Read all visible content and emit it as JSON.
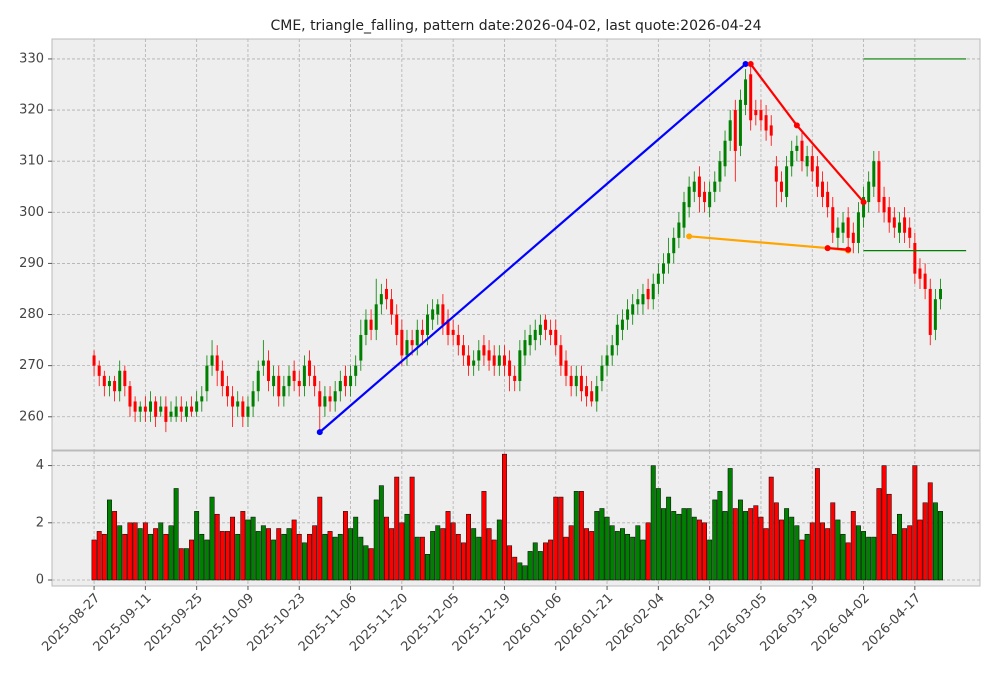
{
  "chart_data": [
    {
      "type": "candlestick",
      "title": "CME, triangle_falling, pattern date:2026-04-02, last quote:2026-04-24",
      "categories": [
        "2025-08-27",
        null,
        null,
        null,
        null,
        null,
        null,
        null,
        null,
        null,
        "2025-09-11",
        null,
        null,
        null,
        null,
        null,
        null,
        null,
        null,
        null,
        "2025-09-25",
        null,
        null,
        null,
        null,
        null,
        null,
        null,
        null,
        null,
        "2025-10-09",
        null,
        null,
        null,
        null,
        null,
        null,
        null,
        null,
        null,
        "2025-10-23",
        null,
        null,
        null,
        null,
        null,
        null,
        null,
        null,
        null,
        "2025-11-06",
        null,
        null,
        null,
        null,
        null,
        null,
        null,
        null,
        null,
        "2025-11-20",
        null,
        null,
        null,
        null,
        null,
        null,
        null,
        null,
        null,
        "2025-12-05",
        null,
        null,
        null,
        null,
        null,
        null,
        null,
        null,
        null,
        "2025-12-19",
        null,
        null,
        null,
        null,
        null,
        null,
        null,
        null,
        null,
        "2026-01-06",
        null,
        null,
        null,
        null,
        null,
        null,
        null,
        null,
        null,
        "2026-01-21",
        null,
        null,
        null,
        null,
        null,
        null,
        null,
        null,
        null,
        "2026-02-04",
        null,
        null,
        null,
        null,
        null,
        null,
        null,
        null,
        null,
        "2026-02-19",
        null,
        null,
        null,
        null,
        null,
        null,
        null,
        null,
        null,
        "2026-03-05",
        null,
        null,
        null,
        null,
        null,
        null,
        null,
        null,
        null,
        "2026-03-19",
        null,
        null,
        null,
        null,
        null,
        null,
        null,
        null,
        null,
        "2026-04-02",
        null,
        null,
        null,
        null,
        null,
        null,
        null,
        null,
        null,
        "2026-04-17",
        null,
        null,
        null,
        null,
        null
      ],
      "open": [
        272,
        270,
        268,
        266,
        267,
        265,
        269,
        266,
        263,
        261,
        262,
        261,
        263,
        261,
        262,
        260,
        260,
        262,
        260,
        262,
        261,
        263,
        265,
        270,
        272,
        269,
        266,
        264,
        262,
        263,
        260,
        262,
        265,
        270,
        271,
        266,
        268,
        264,
        266,
        269,
        267,
        266,
        271,
        268,
        265,
        262,
        264,
        263,
        265,
        268,
        266,
        268,
        271,
        276,
        279,
        277,
        282,
        285,
        283,
        280,
        277,
        272,
        275,
        274,
        277,
        276,
        279,
        280,
        282,
        279,
        277,
        276,
        274,
        272,
        270,
        271,
        274,
        273,
        272,
        270,
        272,
        271,
        268,
        267,
        272,
        274,
        275,
        276,
        279,
        277,
        277,
        274,
        271,
        268,
        266,
        268,
        266,
        265,
        263,
        267,
        270,
        272,
        274,
        277,
        279,
        280,
        282,
        282,
        285,
        283,
        286,
        288,
        290,
        292,
        295,
        297,
        301,
        304,
        307,
        304,
        301,
        304,
        306,
        309,
        314,
        320,
        313,
        321,
        327,
        320,
        320,
        319,
        317,
        309,
        306,
        303,
        309,
        312,
        314,
        309,
        311,
        309,
        306,
        304,
        301,
        295,
        296,
        299,
        296,
        294,
        299,
        302,
        305,
        310,
        303,
        301,
        299,
        296,
        299,
        297,
        294,
        289,
        288,
        285,
        277,
        283
      ],
      "high": [
        273,
        271,
        269,
        268,
        268,
        271,
        270,
        267,
        264,
        263,
        264,
        265,
        264,
        264,
        264,
        263,
        264,
        264,
        263,
        264,
        265,
        266,
        272,
        275,
        274,
        271,
        268,
        266,
        265,
        264,
        264,
        267,
        271,
        275,
        273,
        270,
        270,
        268,
        270,
        271,
        269,
        272,
        273,
        270,
        267,
        266,
        266,
        267,
        269,
        270,
        270,
        272,
        279,
        281,
        281,
        287,
        286,
        287,
        285,
        282,
        279,
        277,
        277,
        279,
        279,
        282,
        283,
        283,
        284,
        281,
        279,
        278,
        276,
        274,
        273,
        275,
        276,
        275,
        274,
        274,
        274,
        273,
        270,
        275,
        277,
        278,
        279,
        280,
        280,
        279,
        279,
        276,
        273,
        270,
        270,
        270,
        268,
        267,
        268,
        272,
        274,
        276,
        280,
        281,
        283,
        284,
        285,
        286,
        287,
        288,
        290,
        292,
        295,
        297,
        300,
        304,
        307,
        308,
        309,
        306,
        306,
        308,
        312,
        316,
        320,
        322,
        324,
        328,
        329,
        322,
        322,
        321,
        319,
        311,
        308,
        311,
        314,
        315,
        316,
        313,
        313,
        311,
        308,
        306,
        303,
        299,
        300,
        301,
        298,
        302,
        305,
        308,
        312,
        312,
        305,
        303,
        301,
        300,
        301,
        299,
        296,
        291,
        290,
        287,
        285,
        287
      ],
      "low": [
        268,
        266,
        264,
        264,
        263,
        263,
        264,
        260,
        259,
        259,
        259,
        259,
        258,
        260,
        257,
        259,
        259,
        259,
        259,
        260,
        260,
        261,
        263,
        268,
        266,
        264,
        262,
        258,
        260,
        258,
        258,
        260,
        263,
        268,
        265,
        264,
        262,
        262,
        264,
        265,
        264,
        264,
        266,
        264,
        257,
        260,
        261,
        261,
        263,
        264,
        264,
        266,
        269,
        274,
        275,
        275,
        280,
        281,
        278,
        274,
        270,
        270,
        272,
        272,
        274,
        274,
        277,
        278,
        276,
        274,
        274,
        272,
        270,
        268,
        268,
        269,
        270,
        269,
        268,
        268,
        268,
        265,
        265,
        265,
        270,
        272,
        273,
        274,
        275,
        274,
        272,
        268,
        266,
        264,
        264,
        263,
        262,
        262,
        261,
        265,
        268,
        270,
        272,
        275,
        277,
        278,
        280,
        280,
        281,
        281,
        284,
        286,
        288,
        290,
        293,
        295,
        299,
        302,
        300,
        300,
        299,
        302,
        304,
        307,
        312,
        306,
        311,
        319,
        316,
        317,
        316,
        314,
        313,
        301,
        302,
        301,
        307,
        310,
        308,
        307,
        306,
        303,
        301,
        299,
        294,
        293,
        294,
        293,
        292,
        292,
        297,
        300,
        303,
        300,
        298,
        296,
        295,
        294,
        294,
        293,
        286,
        285,
        283,
        274,
        275,
        281
      ],
      "close": [
        270,
        268,
        266,
        267,
        265,
        269,
        266,
        262,
        261,
        262,
        261,
        263,
        260,
        262,
        259,
        261,
        262,
        261,
        262,
        261,
        263,
        264,
        270,
        272,
        269,
        266,
        264,
        262,
        263,
        260,
        262,
        265,
        269,
        271,
        267,
        268,
        264,
        266,
        268,
        267,
        266,
        270,
        268,
        266,
        262,
        264,
        263,
        265,
        267,
        266,
        268,
        270,
        276,
        279,
        277,
        282,
        284,
        283,
        280,
        276,
        272,
        275,
        274,
        277,
        276,
        280,
        281,
        282,
        278,
        276,
        276,
        274,
        272,
        270,
        271,
        273,
        272,
        271,
        270,
        272,
        270,
        268,
        267,
        273,
        275,
        276,
        277,
        278,
        277,
        276,
        274,
        270,
        268,
        266,
        268,
        265,
        264,
        263,
        266,
        270,
        272,
        274,
        278,
        279,
        281,
        282,
        283,
        284,
        283,
        286,
        288,
        290,
        292,
        295,
        298,
        302,
        305,
        306,
        303,
        302,
        304,
        306,
        310,
        314,
        318,
        312,
        322,
        326,
        318,
        319,
        318,
        316,
        315,
        306,
        304,
        309,
        312,
        313,
        310,
        311,
        308,
        305,
        303,
        301,
        296,
        297,
        298,
        295,
        294,
        300,
        303,
        306,
        310,
        302,
        300,
        298,
        297,
        298,
        296,
        295,
        288,
        287,
        285,
        276,
        283,
        285
      ],
      "up_color": "#008000",
      "down_color": "#ff0000",
      "lines": [
        {
          "color": "#0000ff",
          "x": [
            44,
            127
          ],
          "y": [
            257,
            329
          ],
          "markers": true
        },
        {
          "color": "#ff0000",
          "x": [
            128,
            137,
            150
          ],
          "y": [
            329,
            317,
            302
          ],
          "markers": true
        },
        {
          "color": "#ffa500",
          "x": [
            116,
            143,
            147
          ],
          "y": [
            295.3,
            293,
            292.5
          ],
          "markers": true
        },
        {
          "color": "#ff0000",
          "x": [
            143,
            147
          ],
          "y": [
            293,
            292.7
          ],
          "markers": true
        },
        {
          "color": "#008000",
          "x": [
            150,
            170
          ],
          "y": [
            330,
            330
          ],
          "markers": false
        },
        {
          "color": "#008000",
          "x": [
            150,
            170
          ],
          "y": [
            292.5,
            292.5
          ],
          "markers": false
        }
      ],
      "xlim": [
        -8.2,
        172.7
      ],
      "ylim": [
        253.5,
        333.9
      ],
      "yticks": [
        260,
        270,
        280,
        290,
        300,
        310,
        320,
        330
      ],
      "grid": true
    },
    {
      "type": "bar",
      "values": [
        1.4,
        1.7,
        1.6,
        2.8,
        2.4,
        1.9,
        1.6,
        2.0,
        2.0,
        1.8,
        2.0,
        1.6,
        1.8,
        2.0,
        1.6,
        1.9,
        3.2,
        1.1,
        1.1,
        1.4,
        2.4,
        1.6,
        1.4,
        2.9,
        2.3,
        1.7,
        1.7,
        2.2,
        1.6,
        2.4,
        2.1,
        2.2,
        1.7,
        1.9,
        1.8,
        1.4,
        1.8,
        1.6,
        1.8,
        2.1,
        1.6,
        1.3,
        1.6,
        1.9,
        2.9,
        1.6,
        1.7,
        1.5,
        1.6,
        2.4,
        1.8,
        2.2,
        1.5,
        1.2,
        1.1,
        2.8,
        3.3,
        2.2,
        1.8,
        3.6,
        2.0,
        2.3,
        3.6,
        1.5,
        1.5,
        0.9,
        1.7,
        1.9,
        1.8,
        2.4,
        2.0,
        1.6,
        1.3,
        2.3,
        1.8,
        1.5,
        3.1,
        1.8,
        1.4,
        2.1,
        4.4,
        1.2,
        0.8,
        0.6,
        0.5,
        1.0,
        1.3,
        1.0,
        1.3,
        1.4,
        2.9,
        2.9,
        1.5,
        1.9,
        3.1,
        3.1,
        1.8,
        1.7,
        2.4,
        2.5,
        2.2,
        1.9,
        1.7,
        1.8,
        1.6,
        1.5,
        1.9,
        1.4,
        2.0,
        4.0,
        3.2,
        2.5,
        2.9,
        2.4,
        2.3,
        2.5,
        2.5,
        2.2,
        2.1,
        2.0,
        1.4,
        2.8,
        3.1,
        2.4,
        3.9,
        2.5,
        2.8,
        2.4,
        2.5,
        2.6,
        2.2,
        1.8,
        3.6,
        2.7,
        2.1,
        2.5,
        2.2,
        1.9,
        1.4,
        1.6,
        2.0,
        3.9,
        2.0,
        1.8,
        2.7,
        2.1,
        1.6,
        1.3,
        2.4,
        1.9,
        1.7,
        1.5,
        1.5,
        3.2,
        4.0,
        3.0,
        1.6,
        2.3,
        1.8,
        1.9,
        4.0,
        2.1,
        2.7,
        3.4,
        2.7,
        2.4
      ],
      "xlim": [
        -8.2,
        172.7
      ],
      "ylim": [
        -0.21,
        4.51
      ],
      "yticks": [
        0,
        2,
        4
      ],
      "grid": true
    }
  ]
}
